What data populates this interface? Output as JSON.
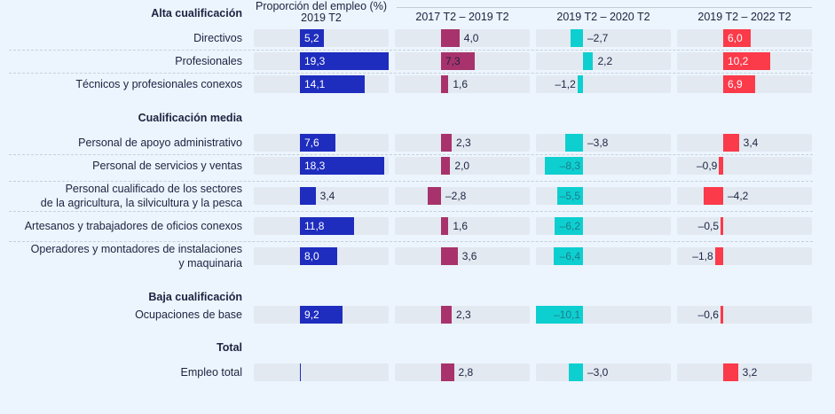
{
  "chart_data": {
    "type": "bar",
    "title": "",
    "orientation": "horizontal",
    "clipped_super_header": "(%)",
    "columns": [
      {
        "key": "share",
        "header_line1": "Proporción del empleo (%)",
        "header_line2": "2019 T2",
        "color": "#1e2dbe",
        "range": [
          0,
          19.3
        ]
      },
      {
        "key": "c1",
        "header_line1": "2017 T2 – 2019 T2",
        "header_line2": "",
        "color": "#a8336c",
        "range": [
          -10.1,
          19.3
        ]
      },
      {
        "key": "c2",
        "header_line1": "2019 T2 – 2020 T2",
        "header_line2": "",
        "color": "#0ecfd0",
        "range": [
          -10.1,
          19.3
        ]
      },
      {
        "key": "c3",
        "header_line1": "2019 T2 – 2022 T2",
        "header_line2": "",
        "color": "#fb3a4a",
        "range": [
          -10.1,
          19.3
        ]
      }
    ],
    "groups": [
      {
        "title": "Alta cualificación",
        "rows": [
          {
            "label": "Directivos",
            "share": 5.2,
            "c1": 4.0,
            "c2": -2.7,
            "c3": 6.0,
            "labels": {
              "share": "5,2",
              "c1": "4,0",
              "c2": "–2,7",
              "c3": "6,0"
            }
          },
          {
            "label": "Profesionales",
            "share": 19.3,
            "c1": 7.3,
            "c2": 2.2,
            "c3": 10.2,
            "labels": {
              "share": "19,3",
              "c1": "7,3",
              "c2": "2,2",
              "c3": "10,2"
            }
          },
          {
            "label": "Técnicos y profesionales conexos",
            "share": 14.1,
            "c1": 1.6,
            "c2": -1.2,
            "c3": 6.9,
            "labels": {
              "share": "14,1",
              "c1": "1,6",
              "c2": "–1,2",
              "c3": "6,9"
            }
          }
        ]
      },
      {
        "title": "Cualificación media",
        "rows": [
          {
            "label": "Personal de apoyo administrativo",
            "share": 7.6,
            "c1": 2.3,
            "c2": -3.8,
            "c3": 3.4,
            "labels": {
              "share": "7,6",
              "c1": "2,3",
              "c2": "–3,8",
              "c3": "3,4"
            }
          },
          {
            "label": "Personal de servicios y ventas",
            "share": 18.3,
            "c1": 2.0,
            "c2": -8.3,
            "c3": -0.9,
            "labels": {
              "share": "18,3",
              "c1": "2,0",
              "c2": "–8,3",
              "c3": "–0,9"
            }
          },
          {
            "label": "Personal cualificado de los sectores\nde la agricultura, la silvicultura y la pesca",
            "share": 3.4,
            "c1": -2.8,
            "c2": -5.5,
            "c3": -4.2,
            "labels": {
              "share": "3,4",
              "c1": "–2,8",
              "c2": "–5,5",
              "c3": "–4,2"
            }
          },
          {
            "label": "Artesanos y trabajadores de oficios conexos",
            "share": 11.8,
            "c1": 1.6,
            "c2": -6.2,
            "c3": -0.5,
            "labels": {
              "share": "11,8",
              "c1": "1,6",
              "c2": "–6,2",
              "c3": "–0,5"
            }
          },
          {
            "label": "Operadores y montadores de instalaciones\ny maquinaria",
            "share": 8.0,
            "c1": 3.6,
            "c2": -6.4,
            "c3": -1.8,
            "labels": {
              "share": "8,0",
              "c1": "3,6",
              "c2": "–6,4",
              "c3": "–1,8"
            }
          }
        ]
      },
      {
        "title": "Baja cualificación",
        "rows": [
          {
            "label": "Ocupaciones de base",
            "share": 9.2,
            "c1": 2.3,
            "c2": -10.1,
            "c3": -0.6,
            "labels": {
              "share": "9,2",
              "c1": "2,3",
              "c2": "–10,1",
              "c3": "–0,6"
            }
          }
        ]
      },
      {
        "title": "Total",
        "rows": [
          {
            "label": "Empleo total",
            "share": null,
            "c1": 2.8,
            "c2": -3.0,
            "c3": 3.2,
            "labels": {
              "share": "",
              "c1": "2,8",
              "c2": "–3,0",
              "c3": "3,2"
            }
          }
        ]
      }
    ],
    "xlabel": "",
    "ylabel": "",
    "grid": false,
    "legend": "none"
  }
}
